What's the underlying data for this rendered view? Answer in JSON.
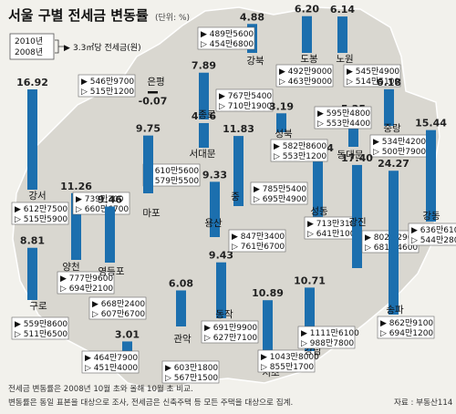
{
  "title": "서울 구별 전세금 변동률",
  "unit": "(단위: %)",
  "legend": {
    "year_a": "2010년",
    "year_b": "2008년",
    "arrow": "▶",
    "desc": "3.3㎡당 전세금(원)",
    "tri_now": "▶",
    "tri_prev": "▷"
  },
  "source": "자료 : 부동산114",
  "notes": [
    "전세금 변동률은 2008년 10월 초와 올해 10월 초 비교.",
    "변동률은 동일 표본을 대상으로 조사, 전세금은 신축주택 등 모든 주택을 대상으로 집계."
  ],
  "colors": {
    "bar": "#1c6fae",
    "map": "#d9d7d0",
    "background": "#f2f1ec"
  },
  "chart_data": {
    "type": "bar",
    "title": "서울 구별 전세금 변동률",
    "unit": "%",
    "districts": [
      {
        "name": "강서",
        "change": 16.92,
        "price_2010": "612만7500",
        "price_2008": "515만5900"
      },
      {
        "name": "양천",
        "change": 11.26,
        "price_2010": "777만9600",
        "price_2008": "694만2100"
      },
      {
        "name": "구로",
        "change": 8.81,
        "price_2010": "559만8600",
        "price_2008": "511만6500"
      },
      {
        "name": "은평",
        "change": -0.07,
        "price_2010": "546만9700",
        "price_2008": "515만1200"
      },
      {
        "name": "서대문",
        "change": 4.16,
        "price_2010": "610만5600",
        "price_2008": "579만5500"
      },
      {
        "name": "마포",
        "change": 9.75,
        "price_2010": "739만300",
        "price_2008": "660만6700"
      },
      {
        "name": "영등포",
        "change": 9.46,
        "price_2010": "668만2400",
        "price_2008": "607만6700"
      },
      {
        "name": "금천",
        "change": 3.01,
        "price_2010": "464만7900",
        "price_2008": "451만4000"
      },
      {
        "name": "관악",
        "change": 6.08,
        "price_2010": "603만1800",
        "price_2008": "567만1500"
      },
      {
        "name": "동작",
        "change": 9.43,
        "price_2010": "691만9900",
        "price_2008": "627만7100"
      },
      {
        "name": "용산",
        "change": 9.33,
        "price_2010": "847만3400",
        "price_2008": "761만6700"
      },
      {
        "name": "종로",
        "change": 7.89,
        "price_2010": "767만5400",
        "price_2008": "710만1900"
      },
      {
        "name": "중",
        "change": 11.83,
        "price_2010": "785만5400",
        "price_2008": "695만4900"
      },
      {
        "name": "서초",
        "change": 10.89,
        "price_2010": "1043만8000",
        "price_2008": "855만1700"
      },
      {
        "name": "강남",
        "change": 10.71,
        "price_2010": "1111만6100",
        "price_2008": "988만7800"
      },
      {
        "name": "성동",
        "change": 10.44,
        "price_2010": "713만3100",
        "price_2008": "641만100"
      },
      {
        "name": "성북",
        "change": 3.19,
        "price_2010": "582만8600",
        "price_2008": "553만1200"
      },
      {
        "name": "강북",
        "change": 4.88,
        "price_2010": "489만5600",
        "price_2008": "454만6800"
      },
      {
        "name": "도봉",
        "change": 6.2,
        "price_2010": "492만9000",
        "price_2008": "463만9000"
      },
      {
        "name": "노원",
        "change": 6.14,
        "price_2010": "545만4900",
        "price_2008": "514만5100"
      },
      {
        "name": "동대문",
        "change": 5.25,
        "price_2010": "595만4800",
        "price_2008": "553만4400"
      },
      {
        "name": "중랑",
        "change": 6.18,
        "price_2010": "534만4200",
        "price_2008": "500만7900"
      },
      {
        "name": "광진",
        "change": 17.4,
        "price_2010": "802만2900",
        "price_2008": "681만4600"
      },
      {
        "name": "송파",
        "change": 24.27,
        "price_2010": "862만9100",
        "price_2008": "694만1200"
      },
      {
        "name": "강동",
        "change": 15.44,
        "price_2010": "636만6100",
        "price_2008": "544만2800"
      }
    ]
  }
}
